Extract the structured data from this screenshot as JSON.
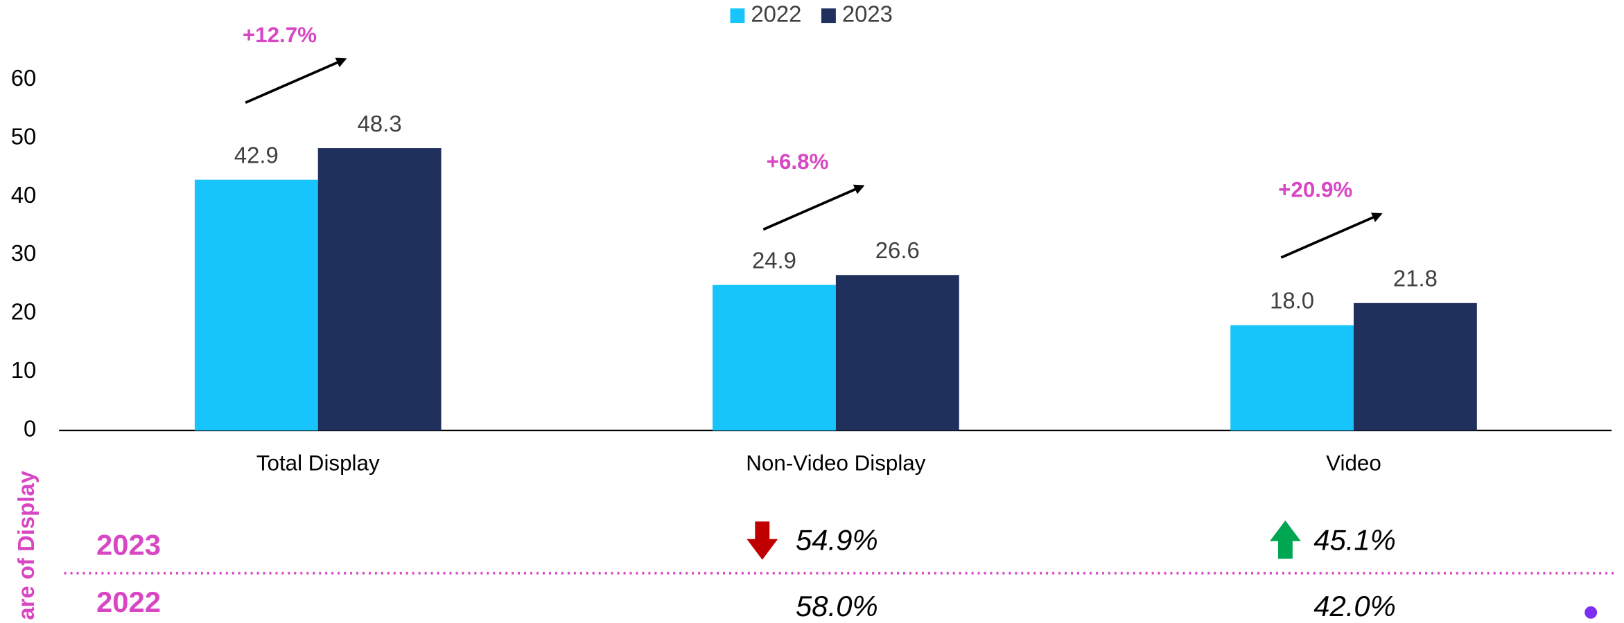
{
  "chart_data": {
    "type": "bar",
    "categories": [
      "Total Display",
      "Non-Video Display",
      "Video"
    ],
    "series": [
      {
        "name": "2022",
        "color": "#17c5fc",
        "values": [
          42.9,
          24.9,
          18.0
        ],
        "value_labels": [
          "42.9",
          "24.9",
          "18.0"
        ]
      },
      {
        "name": "2023",
        "color": "#20305c",
        "values": [
          48.3,
          26.6,
          21.8
        ]
      }
    ],
    "ylim": [
      0,
      60
    ],
    "yticks": [
      0,
      10,
      20,
      30,
      40,
      50,
      60
    ],
    "annotations": [
      "+12.7%",
      "+6.8%",
      "+20.9%"
    ],
    "share_label": "are of Display",
    "share_rows": [
      {
        "label": "2023",
        "values": [
          "54.9%",
          "45.1%"
        ]
      },
      {
        "label": "2022",
        "values": [
          "58.0%",
          "42.0%"
        ]
      }
    ]
  }
}
